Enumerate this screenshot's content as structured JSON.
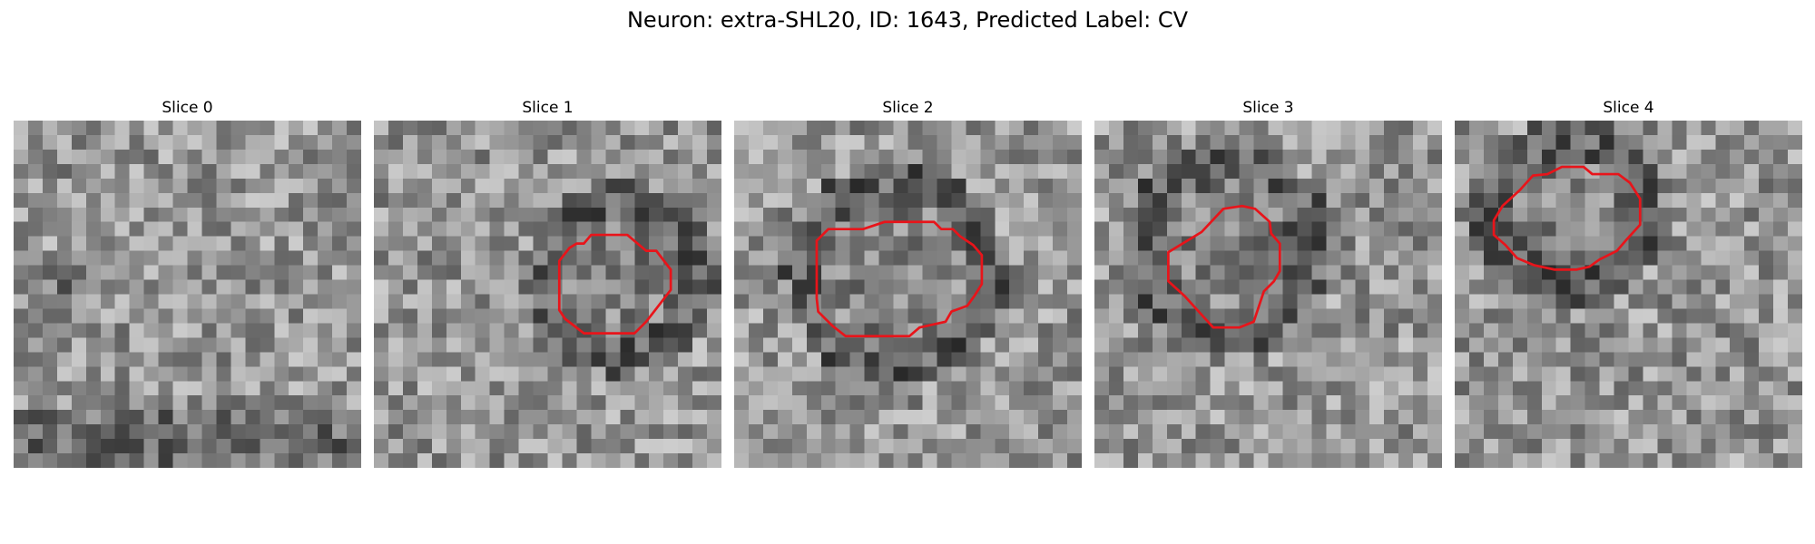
{
  "figure": {
    "title": "Neuron: extra-SHL20, ID: 1643, Predicted Label: CV"
  },
  "contour_color": "#e8141a",
  "colormap": "gray",
  "panels": [
    {
      "title": "Slice 0",
      "contour": [],
      "dark_ring": null
    },
    {
      "title": "Slice 1",
      "contour": [
        [
          14,
          8.5
        ],
        [
          14.5,
          8.5
        ],
        [
          15,
          7.9
        ],
        [
          17.5,
          7.9
        ],
        [
          18.8,
          9
        ],
        [
          19.5,
          9
        ],
        [
          20.5,
          10.3
        ],
        [
          20.5,
          11.7
        ],
        [
          19.5,
          13
        ],
        [
          18.8,
          13.9
        ],
        [
          18,
          14.7
        ],
        [
          14.5,
          14.7
        ],
        [
          13.2,
          13.7
        ],
        [
          12.8,
          13.1
        ],
        [
          12.8,
          9.7
        ],
        [
          13.5,
          8.8
        ]
      ],
      "dark_ring": {
        "cx": 17,
        "cy": 11,
        "r": 5.2
      }
    },
    {
      "title": "Slice 2",
      "contour": [
        [
          5.7,
          8.3
        ],
        [
          6.5,
          7.5
        ],
        [
          8.9,
          7.5
        ],
        [
          10.4,
          7.0
        ],
        [
          13.8,
          7.0
        ],
        [
          14.3,
          7.5
        ],
        [
          15.1,
          7.5
        ],
        [
          15.6,
          8.0
        ],
        [
          16.5,
          8.6
        ],
        [
          17.1,
          9.3
        ],
        [
          17.1,
          11.3
        ],
        [
          16.6,
          12.1
        ],
        [
          16.1,
          12.8
        ],
        [
          15.0,
          13.2
        ],
        [
          14.6,
          13.9
        ],
        [
          12.8,
          14.3
        ],
        [
          12.1,
          14.9
        ],
        [
          7.7,
          14.9
        ],
        [
          6.8,
          14.2
        ],
        [
          5.8,
          13.2
        ],
        [
          5.7,
          12.3
        ]
      ],
      "dark_ring": {
        "cx": 11.2,
        "cy": 10.5,
        "r": 6.3
      }
    },
    {
      "title": "Slice 3",
      "contour": [
        [
          7.4,
          7.7
        ],
        [
          8.9,
          6.1
        ],
        [
          10.2,
          5.9
        ],
        [
          11.1,
          6.1
        ],
        [
          12.1,
          7.0
        ],
        [
          12.2,
          7.8
        ],
        [
          12.8,
          8.5
        ],
        [
          12.8,
          10.4
        ],
        [
          12.4,
          11.1
        ],
        [
          11.7,
          11.8
        ],
        [
          11.3,
          13.0
        ],
        [
          11.0,
          13.9
        ],
        [
          10.0,
          14.3
        ],
        [
          8.2,
          14.3
        ],
        [
          7.2,
          13.2
        ],
        [
          6.2,
          12.1
        ],
        [
          5.1,
          11.1
        ],
        [
          5.1,
          9.1
        ]
      ],
      "dark_ring": {
        "cx": 9.2,
        "cy": 8.7,
        "r": 5.8
      }
    },
    {
      "title": "Slice 4",
      "contour": [
        [
          2.7,
          6.9
        ],
        [
          3.3,
          5.9
        ],
        [
          4.5,
          4.8
        ],
        [
          5.4,
          3.8
        ],
        [
          6.4,
          3.7
        ],
        [
          7.4,
          3.2
        ],
        [
          8.9,
          3.2
        ],
        [
          9.5,
          3.7
        ],
        [
          11.3,
          3.7
        ],
        [
          12.1,
          4.3
        ],
        [
          12.8,
          5.4
        ],
        [
          12.8,
          7.2
        ],
        [
          11.8,
          8.3
        ],
        [
          11.2,
          9.0
        ],
        [
          10.6,
          9.3
        ],
        [
          10.0,
          9.6
        ],
        [
          9.3,
          10.1
        ],
        [
          8.4,
          10.3
        ],
        [
          6.9,
          10.3
        ],
        [
          5.5,
          10.0
        ],
        [
          4.3,
          9.5
        ],
        [
          3.5,
          8.6
        ],
        [
          2.7,
          7.9
        ]
      ],
      "dark_ring": {
        "cx": 7.7,
        "cy": 6.4,
        "r": 5.2
      }
    }
  ]
}
